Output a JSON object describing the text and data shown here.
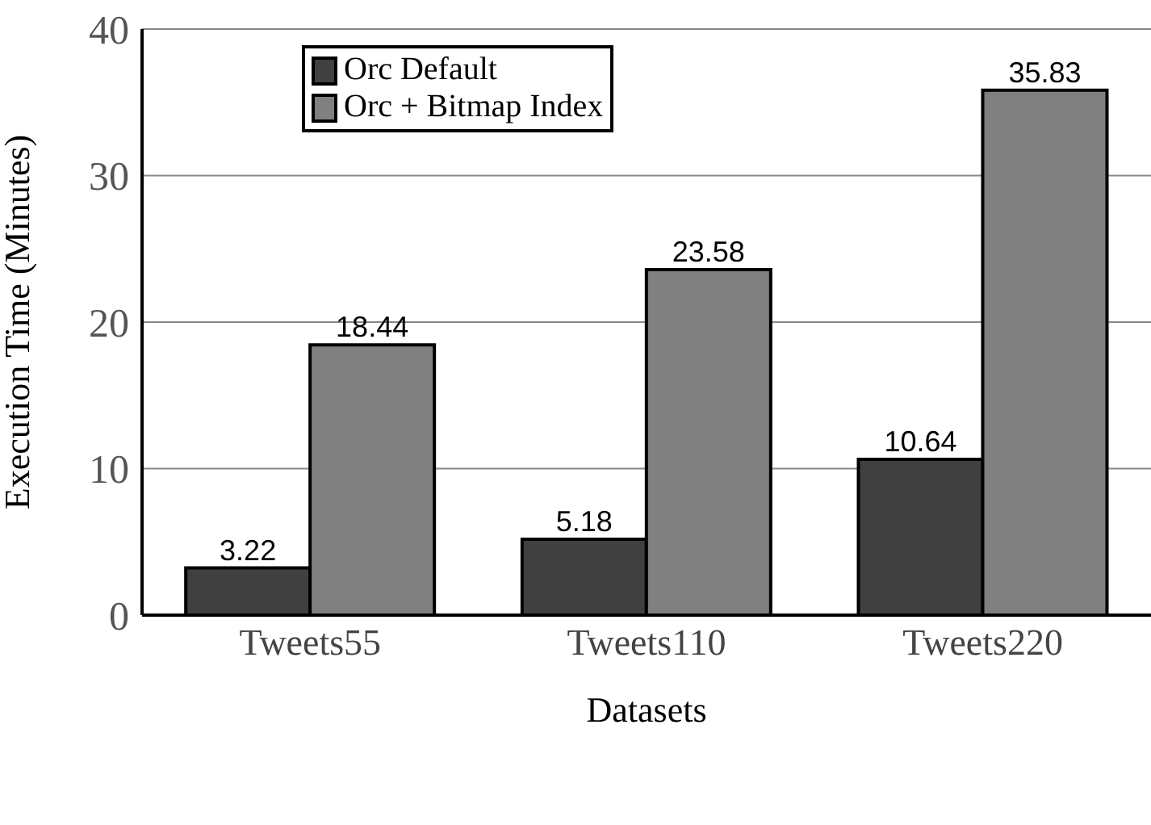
{
  "chart_data": {
    "type": "bar",
    "xlabel": "Datasets",
    "ylabel": "Execution Time (Minutes)",
    "categories": [
      "Tweets55",
      "Tweets110",
      "Tweets220"
    ],
    "series": [
      {
        "name": "Orc Default",
        "color": "#404040",
        "values": [
          3.22,
          5.18,
          10.64
        ]
      },
      {
        "name": "Orc + Bitmap Index",
        "color": "#808080",
        "values": [
          18.44,
          23.58,
          35.83
        ]
      }
    ],
    "ylim": [
      0,
      40
    ],
    "yticks": [
      0,
      10,
      20,
      30,
      40
    ],
    "grid": "y",
    "legend": "top left",
    "data_labels": true
  }
}
